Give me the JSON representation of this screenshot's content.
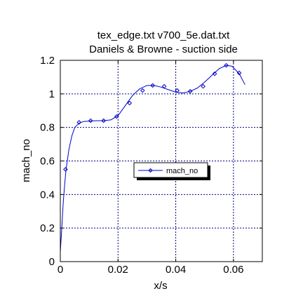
{
  "chart_data": {
    "type": "line",
    "title": "tex_edge.txt   v700_5e.dat.txt",
    "subtitle": "Daniels & Browne - suction side",
    "xlabel": "x/s",
    "ylabel": "mach_no",
    "xlim": [
      0,
      0.07
    ],
    "ylim": [
      0,
      1.2
    ],
    "xticks": [
      0,
      0.02,
      0.04,
      0.06
    ],
    "xtick_labels": [
      "0",
      "0.02",
      "0.04",
      "0.06"
    ],
    "yticks": [
      0,
      0.2,
      0.4,
      0.6,
      0.8,
      1,
      1.2
    ],
    "ytick_labels": [
      "0",
      "0.2",
      "0.4",
      "0.6",
      "0.8",
      "1",
      "1.2"
    ],
    "grid": true,
    "legend_position": "center-right",
    "line_color": "#0000cc",
    "series": [
      {
        "name": "mach_no",
        "style": "line-with-diamond-markers",
        "x": [
          0,
          0.0005,
          0.001,
          0.0015,
          0.002,
          0.003,
          0.004,
          0.005,
          0.0065,
          0.008,
          0.01,
          0.0125,
          0.015,
          0.0175,
          0.02,
          0.0225,
          0.025,
          0.0275,
          0.03,
          0.0325,
          0.035,
          0.0375,
          0.04,
          0.0425,
          0.045,
          0.0475,
          0.05,
          0.0525,
          0.055,
          0.0575,
          0.0595,
          0.062,
          0.064
        ],
        "y": [
          0.06,
          0.2,
          0.35,
          0.46,
          0.55,
          0.67,
          0.75,
          0.8,
          0.825,
          0.835,
          0.838,
          0.84,
          0.84,
          0.845,
          0.87,
          0.93,
          0.99,
          1.03,
          1.05,
          1.05,
          1.04,
          1.025,
          1.01,
          1.005,
          1.015,
          1.035,
          1.07,
          1.11,
          1.15,
          1.17,
          1.165,
          1.12,
          1.055
        ]
      }
    ],
    "markers": {
      "x": [
        0.0018,
        0.0065,
        0.0105,
        0.015,
        0.0195,
        0.024,
        0.0285,
        0.032,
        0.036,
        0.0405,
        0.045,
        0.0495,
        0.0535,
        0.0575,
        0.062
      ],
      "y": [
        0.55,
        0.83,
        0.84,
        0.84,
        0.865,
        0.945,
        1.02,
        1.05,
        1.045,
        1.02,
        1.015,
        1.045,
        1.12,
        1.17,
        1.125
      ]
    }
  }
}
